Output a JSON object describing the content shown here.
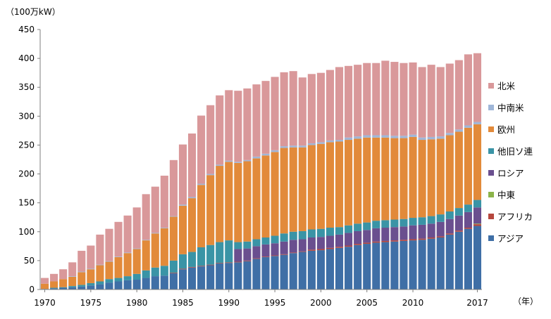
{
  "colors": {
    "north_america": "#d9989a",
    "latin_america": "#9fb6d8",
    "europe": "#e28a3a",
    "other_former_ussr": "#3a94a6",
    "russia": "#6a4f8f",
    "middle_east": "#8cb44a",
    "africa": "#b6473d",
    "asia": "#3f6fa6"
  },
  "chart_data": {
    "type": "bar",
    "stacked": true,
    "title": "",
    "xlabel": "（年）",
    "ylabel": "（100万kW）",
    "ylim": [
      0,
      450
    ],
    "yticks": [
      0,
      50,
      100,
      150,
      200,
      250,
      300,
      350,
      400,
      450
    ],
    "xtick_labels": [
      "1970",
      "1975",
      "1980",
      "1985",
      "1990",
      "1995",
      "2000",
      "2005",
      "2010",
      "2017"
    ],
    "categories": [
      "1970",
      "1971",
      "1972",
      "1973",
      "1974",
      "1975",
      "1976",
      "1977",
      "1978",
      "1979",
      "1980",
      "1981",
      "1982",
      "1983",
      "1984",
      "1985",
      "1986",
      "1987",
      "1988",
      "1989",
      "1990",
      "1991",
      "1992",
      "1993",
      "1994",
      "1995",
      "1996",
      "1997",
      "1998",
      "1999",
      "2000",
      "2001",
      "2002",
      "2003",
      "2004",
      "2005",
      "2006",
      "2007",
      "2008",
      "2009",
      "2010",
      "2011",
      "2012",
      "2013",
      "2014",
      "2015",
      "2016",
      "2017"
    ],
    "legend_position": "right",
    "series": [
      {
        "name": "アジア",
        "color_key": "asia",
        "values": [
          1,
          2,
          3,
          4,
          5,
          7,
          9,
          12,
          14,
          16,
          17,
          20,
          23,
          24,
          28,
          35,
          38,
          40,
          42,
          45,
          46,
          47,
          49,
          53,
          56,
          58,
          60,
          63,
          65,
          67,
          68,
          70,
          72,
          74,
          77,
          79,
          81,
          82,
          83,
          84,
          85,
          86,
          88,
          90,
          95,
          100,
          105,
          110
        ]
      },
      {
        "name": "アフリカ",
        "color_key": "africa",
        "values": [
          0,
          0,
          0,
          0,
          0,
          0,
          0,
          0,
          0,
          0,
          0,
          0,
          0,
          0,
          1,
          1,
          1,
          1,
          1,
          1,
          1,
          1,
          1,
          1,
          1,
          1,
          1,
          1,
          1,
          2,
          2,
          2,
          2,
          2,
          2,
          2,
          2,
          2,
          2,
          2,
          2,
          2,
          2,
          2,
          2,
          2,
          2,
          3
        ]
      },
      {
        "name": "中東",
        "color_key": "middle_east",
        "values": [
          0,
          0,
          0,
          0,
          0,
          0,
          0,
          0,
          0,
          0,
          0,
          0,
          0,
          0,
          0,
          0,
          0,
          0,
          0,
          0,
          0,
          0,
          0,
          0,
          0,
          0,
          0,
          0,
          0,
          0,
          0,
          0,
          0,
          0,
          0,
          0,
          0,
          0,
          0,
          0,
          0,
          0,
          0,
          0,
          0,
          0,
          0,
          1
        ]
      },
      {
        "name": "ロシア",
        "color_key": "russia",
        "values": [
          0,
          0,
          0,
          0,
          0,
          0,
          0,
          0,
          0,
          0,
          0,
          0,
          0,
          0,
          0,
          0,
          0,
          0,
          0,
          0,
          0,
          22,
          21,
          21,
          21,
          21,
          22,
          22,
          21,
          21,
          21,
          21,
          21,
          22,
          22,
          22,
          23,
          23,
          23,
          23,
          24,
          24,
          24,
          25,
          25,
          26,
          27,
          28
        ]
      },
      {
        "name": "他旧ソ連",
        "color_key": "other_former_ussr",
        "values": [
          0,
          1,
          1,
          2,
          3,
          4,
          5,
          6,
          6,
          7,
          10,
          13,
          15,
          17,
          21,
          25,
          26,
          32,
          34,
          36,
          38,
          12,
          12,
          12,
          12,
          13,
          14,
          14,
          14,
          14,
          14,
          14,
          13,
          13,
          13,
          13,
          13,
          13,
          13,
          13,
          13,
          13,
          13,
          13,
          13,
          13,
          13,
          13
        ]
      },
      {
        "name": "欧州",
        "color_key": "europe",
        "values": [
          9,
          11,
          14,
          16,
          22,
          24,
          28,
          30,
          36,
          40,
          43,
          52,
          59,
          65,
          76,
          84,
          93,
          108,
          121,
          132,
          136,
          137,
          139,
          140,
          142,
          145,
          148,
          146,
          145,
          146,
          147,
          148,
          148,
          148,
          147,
          147,
          144,
          143,
          141,
          140,
          140,
          134,
          133,
          131,
          132,
          132,
          133,
          131
        ]
      },
      {
        "name": "中南米",
        "color_key": "latin_america",
        "values": [
          0,
          0,
          0,
          1,
          1,
          1,
          1,
          1,
          1,
          1,
          1,
          1,
          1,
          1,
          1,
          2,
          2,
          2,
          2,
          2,
          2,
          2,
          2,
          3,
          3,
          3,
          3,
          3,
          3,
          3,
          3,
          3,
          3,
          4,
          4,
          4,
          4,
          4,
          4,
          4,
          4,
          4,
          4,
          4,
          4,
          4,
          4,
          4
        ]
      },
      {
        "name": "北米",
        "color_key": "north_america",
        "values": [
          10,
          13,
          17,
          24,
          36,
          40,
          52,
          56,
          60,
          64,
          71,
          79,
          80,
          90,
          97,
          104,
          110,
          118,
          119,
          120,
          122,
          123,
          124,
          125,
          126,
          127,
          128,
          129,
          118,
          120,
          120,
          122,
          126,
          124,
          124,
          125,
          125,
          129,
          128,
          126,
          125,
          122,
          125,
          120,
          120,
          120,
          123,
          119
        ]
      }
    ]
  }
}
